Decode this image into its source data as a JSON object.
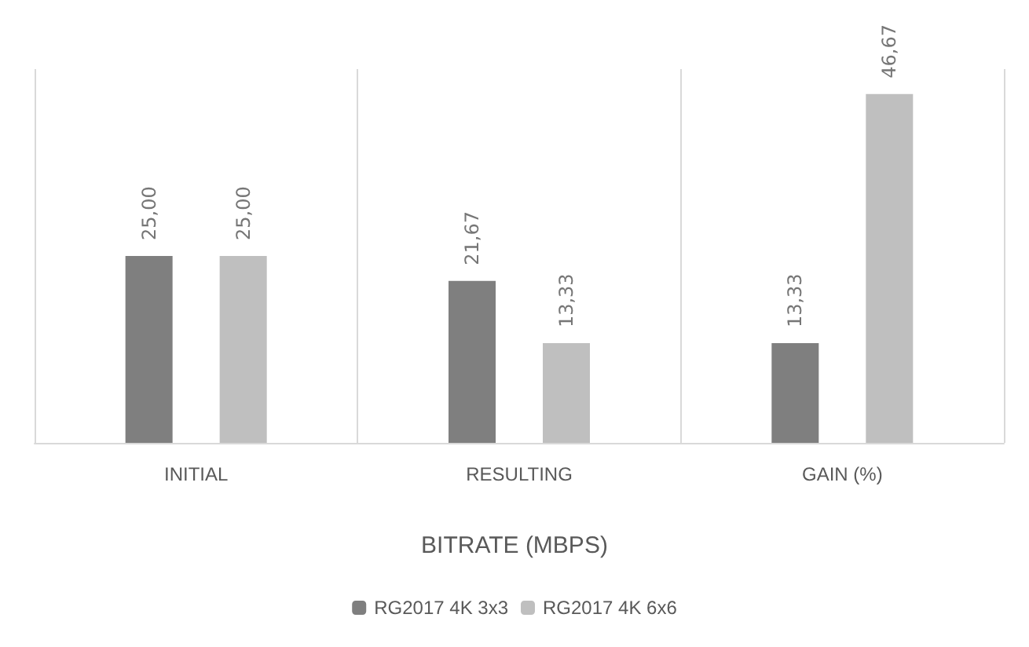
{
  "chart_data": {
    "type": "bar",
    "title": "BITRATE (MBPS)",
    "categories": [
      "INITIAL",
      "RESULTING",
      "GAIN (%)"
    ],
    "series": [
      {
        "name": "RG2017 4K 3x3",
        "color": "#7f7f7f",
        "values": [
          25.0,
          21.67,
          13.33
        ],
        "value_labels": [
          "25,00",
          "21,67",
          "13,33"
        ]
      },
      {
        "name": "RG2017 4K 6x6",
        "color": "#bfbfbf",
        "values": [
          25.0,
          13.33,
          46.67
        ],
        "value_labels": [
          "25,00",
          "13,33",
          "46,67"
        ]
      }
    ],
    "grid": "x",
    "legend": "bottom",
    "tick_labels": "x"
  }
}
